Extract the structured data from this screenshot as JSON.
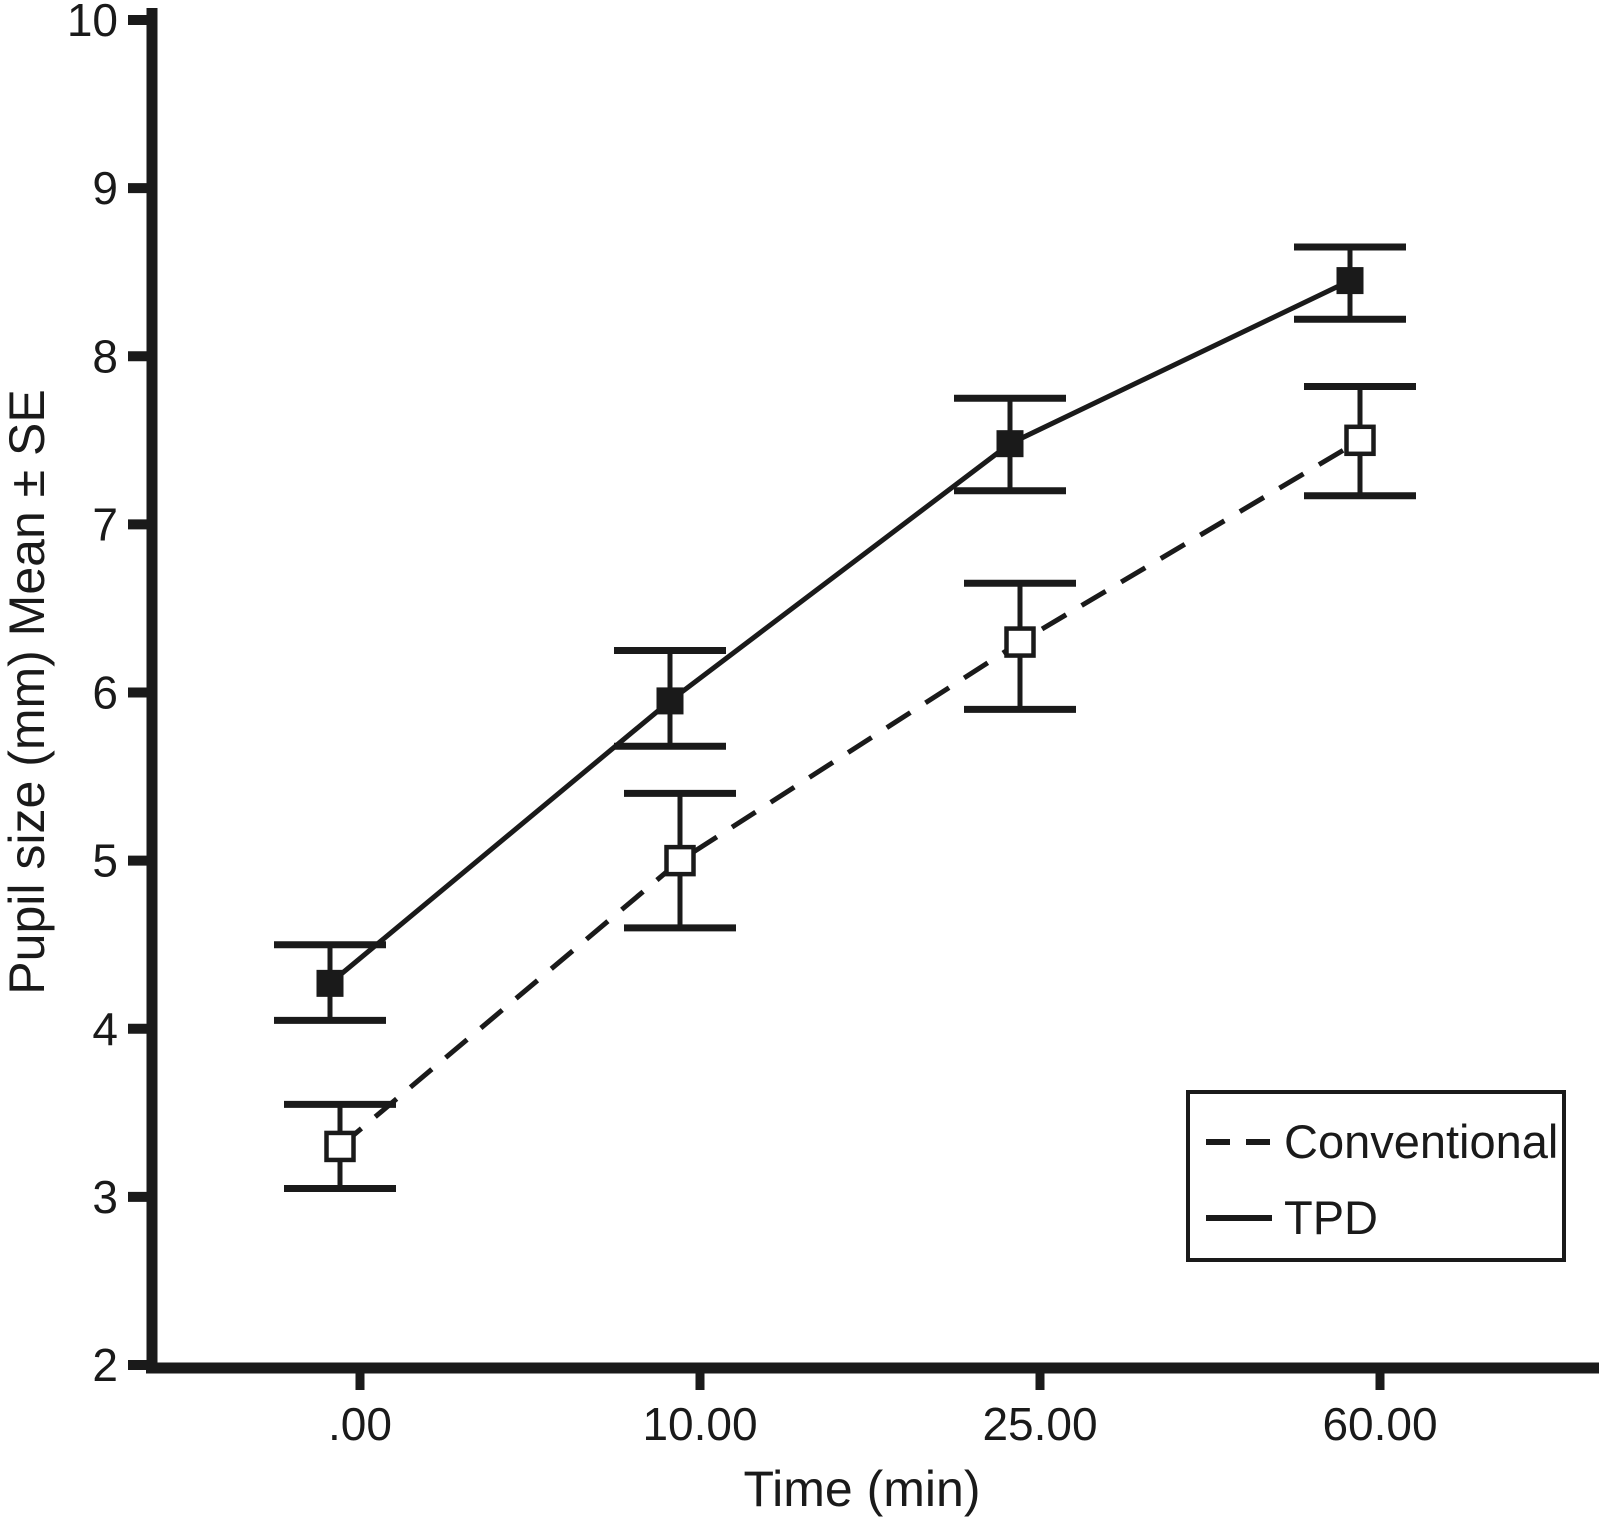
{
  "chart_data": {
    "type": "line",
    "title": "",
    "xlabel": "Time (min)",
    "ylabel": "Pupil size (mm) Mean ± SE",
    "x_categories": [
      ".00",
      "10.00",
      "25.00",
      "60.00"
    ],
    "ylim": [
      2,
      10
    ],
    "yticks": [
      2,
      3,
      4,
      5,
      6,
      7,
      8,
      9,
      10
    ],
    "grid": false,
    "legend_position": "bottom-right",
    "series": [
      {
        "name": "Conventional",
        "line_style": "dashed",
        "marker": "open-square",
        "values": [
          3.3,
          5.0,
          6.3,
          7.5
        ],
        "err_lower": [
          3.05,
          4.6,
          5.9,
          7.17
        ],
        "err_upper": [
          3.55,
          5.4,
          6.65,
          7.82
        ]
      },
      {
        "name": "TPD",
        "line_style": "solid",
        "marker": "filled-square",
        "values": [
          4.27,
          5.95,
          7.48,
          8.45
        ],
        "err_lower": [
          4.05,
          5.68,
          7.2,
          8.22
        ],
        "err_upper": [
          4.5,
          6.25,
          7.75,
          8.65
        ]
      }
    ],
    "colors": {
      "foreground": "#1a1a1a",
      "background": "#ffffff"
    }
  }
}
